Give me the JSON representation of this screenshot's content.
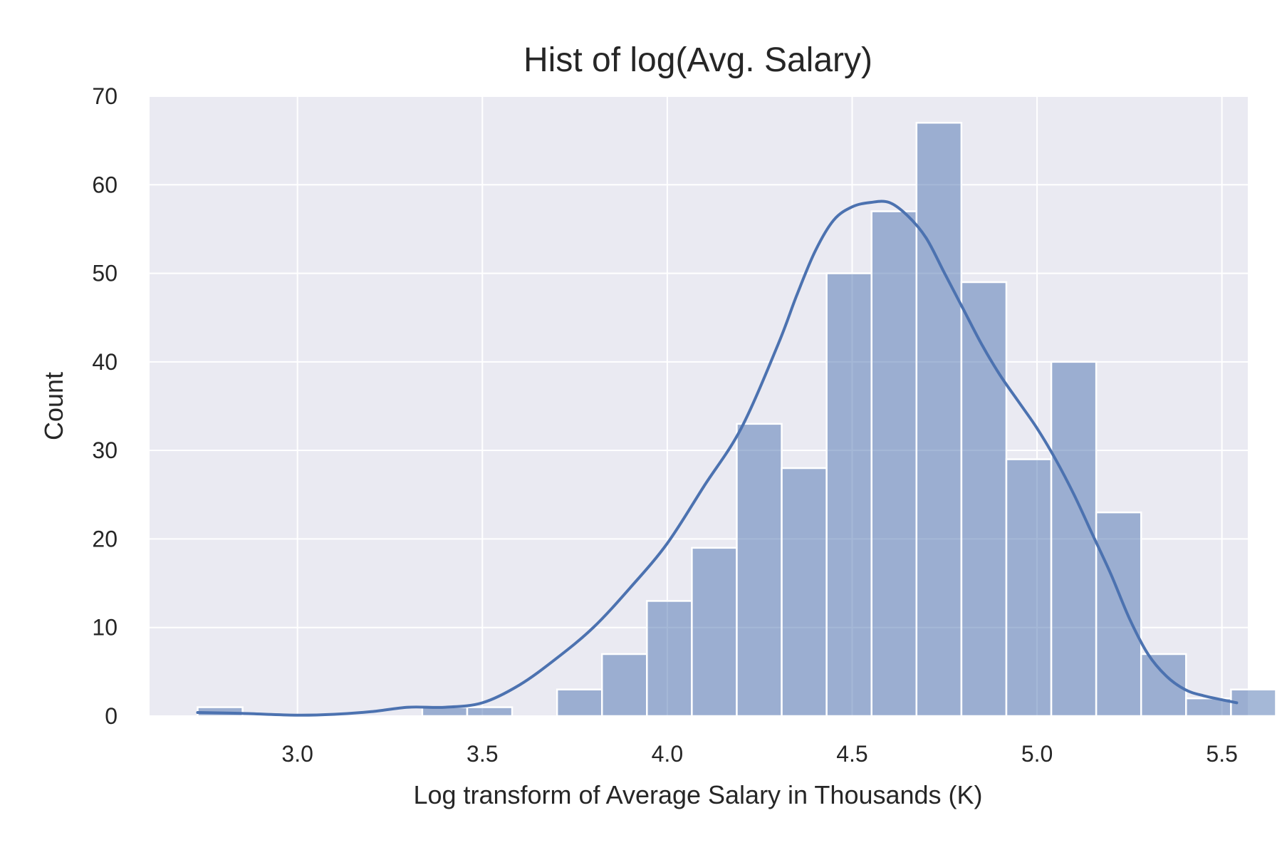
{
  "chart_data": {
    "type": "bar",
    "title": "Hist of log(Avg. Salary)",
    "xlabel": "Log transform of Average Salary in Thousands (K)",
    "ylabel": "Count",
    "xlim": [
      2.6,
      5.57
    ],
    "ylim": [
      0,
      70
    ],
    "xticks": [
      "3.0",
      "3.5",
      "4.0",
      "4.5",
      "5.0",
      "5.5"
    ],
    "yticks": [
      "0",
      "10",
      "20",
      "30",
      "40",
      "50",
      "60",
      "70"
    ],
    "grid": true,
    "legend": "none",
    "bins": {
      "start": 2.73,
      "width": 0.1215,
      "counts": [
        1,
        0,
        0,
        0,
        0,
        1,
        1,
        0,
        3,
        7,
        13,
        19,
        33,
        28,
        50,
        57,
        67,
        49,
        29,
        40,
        23,
        7,
        2,
        3
      ]
    },
    "kde": {
      "x": [
        2.73,
        2.85,
        3.0,
        3.1,
        3.2,
        3.3,
        3.4,
        3.5,
        3.6,
        3.7,
        3.8,
        3.9,
        4.0,
        4.1,
        4.2,
        4.3,
        4.35,
        4.4,
        4.45,
        4.5,
        4.55,
        4.6,
        4.65,
        4.7,
        4.75,
        4.8,
        4.85,
        4.9,
        4.95,
        5.0,
        5.05,
        5.1,
        5.15,
        5.2,
        5.25,
        5.3,
        5.35,
        5.4,
        5.45,
        5.54
      ],
      "y": [
        0.4,
        0.3,
        0.1,
        0.2,
        0.5,
        1.0,
        1.0,
        1.5,
        3.5,
        6.5,
        10.0,
        14.5,
        19.5,
        26.0,
        32.5,
        42.0,
        47.5,
        52.5,
        56.0,
        57.5,
        58.0,
        58.0,
        56.5,
        54.0,
        50.0,
        46.0,
        42.0,
        38.5,
        35.5,
        32.5,
        29.0,
        25.0,
        20.5,
        16.0,
        11.0,
        7.0,
        4.5,
        3.0,
        2.3,
        1.5
      ]
    },
    "colors": {
      "background": "#eaeaf2",
      "grid": "#ffffff",
      "bar_fill": "#4c72b0",
      "bar_fill_opacity": 0.5,
      "bar_edge": "#ffffff",
      "kde_line": "#4c72b0"
    }
  }
}
